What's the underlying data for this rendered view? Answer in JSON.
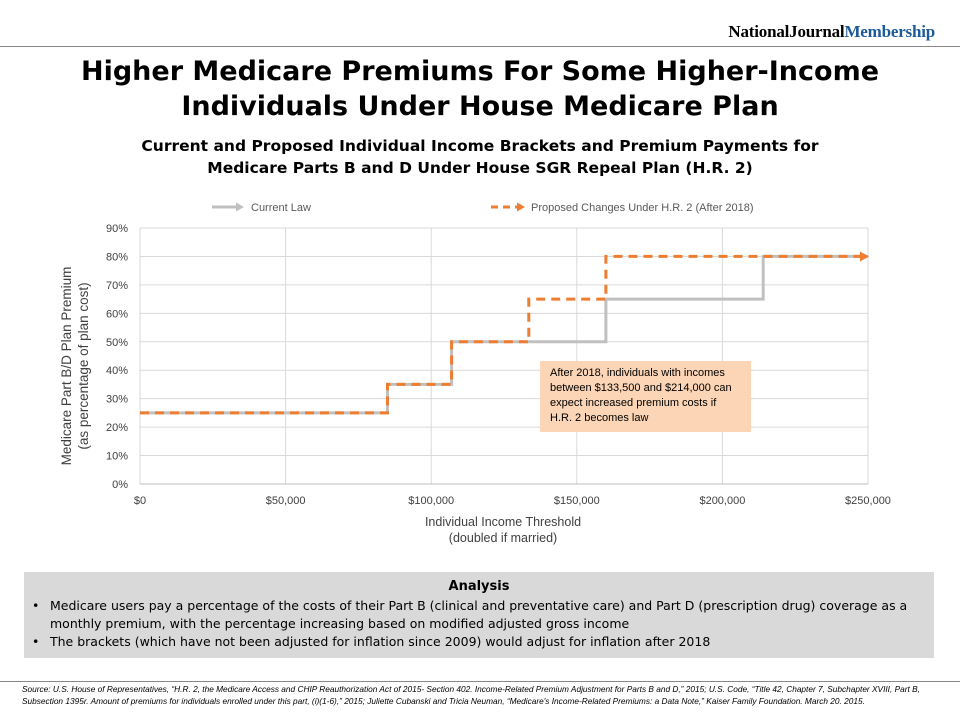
{
  "brand": {
    "part1": "NationalJournal",
    "part2": "Membership"
  },
  "title": {
    "line1": "Higher Medicare Premiums For Some Higher-Income",
    "line2": "Individuals Under House Medicare Plan"
  },
  "subtitle": {
    "line1": "Current and Proposed Individual Income Brackets and Premium Payments for",
    "line2": "Medicare Parts B and D Under House SGR Repeal Plan (H.R. 2)"
  },
  "colors": {
    "current": "#c0c0c0",
    "proposed": "#ed7d31",
    "callout_bg": "#fbd5b5",
    "analysis_bg": "#d9d9d9",
    "brand_blue": "#1d5a9a"
  },
  "chart_data": {
    "type": "line",
    "step": true,
    "xlabel_line1": "Individual Income Threshold",
    "xlabel_line2": "(doubled if married)",
    "ylabel_line1": "Medicare Part B/D Plan Premium",
    "ylabel_line2": "(as percentage of plan cost)",
    "xlim": [
      0,
      250000
    ],
    "ylim": [
      0,
      90
    ],
    "x_ticks": [
      0,
      50000,
      100000,
      150000,
      200000,
      250000
    ],
    "x_tick_labels": [
      "$0",
      "$50,000",
      "$100,000",
      "$150,000",
      "$200,000",
      "$250,000"
    ],
    "y_ticks": [
      0,
      10,
      20,
      30,
      40,
      50,
      60,
      70,
      80,
      90
    ],
    "y_tick_labels": [
      "0%",
      "10%",
      "20%",
      "30%",
      "40%",
      "50%",
      "60%",
      "70%",
      "80%",
      "90%"
    ],
    "grid": true,
    "legend_position": "top",
    "series": [
      {
        "name": "Current Law",
        "style": "solid",
        "points": [
          [
            0,
            25
          ],
          [
            85000,
            25
          ],
          [
            85000,
            35
          ],
          [
            107000,
            35
          ],
          [
            107000,
            50
          ],
          [
            160000,
            50
          ],
          [
            160000,
            65
          ],
          [
            214000,
            65
          ],
          [
            214000,
            80
          ],
          [
            250000,
            80
          ]
        ]
      },
      {
        "name": "Proposed Changes Under H.R. 2 (After 2018)",
        "style": "dashed",
        "points": [
          [
            0,
            25
          ],
          [
            85000,
            25
          ],
          [
            85000,
            35
          ],
          [
            107000,
            35
          ],
          [
            107000,
            50
          ],
          [
            133500,
            50
          ],
          [
            133500,
            65
          ],
          [
            160000,
            65
          ],
          [
            160000,
            80
          ],
          [
            250000,
            80
          ]
        ]
      }
    ],
    "annotation": {
      "lines": [
        "After 2018, individuals with incomes",
        "between $133,500 and $214,000 can",
        "expect increased premium costs if",
        "H.R. 2 becomes law"
      ]
    }
  },
  "analysis": {
    "heading": "Analysis",
    "bullets": [
      "Medicare users pay a percentage of the costs of their Part B (clinical and preventative care) and Part D (prescription drug) coverage as a monthly premium, with the percentage increasing based on modified adjusted gross income",
      "The brackets (which have not been adjusted for inflation since 2009) would adjust for inflation after 2018"
    ]
  },
  "source": "Source: U.S. House of Representatives, “H.R. 2, the Medicare Access and CHIP Reauthorization Act of 2015- Section 402. Income-Related Premium Adjustment for Parts B and D,” 2015; U.S. Code, “Title 42, Chapter 7, Subchapter XVIII, Part B, Subsection 1395r. Amount of premiums for individuals enrolled under this part, (i)(1-6),” 2015; Juliette Cubanski and Tricia Neuman, “Medicare's Income-Related Premiums: a Data Note,” Kaiser Family Foundation. March 20. 2015."
}
